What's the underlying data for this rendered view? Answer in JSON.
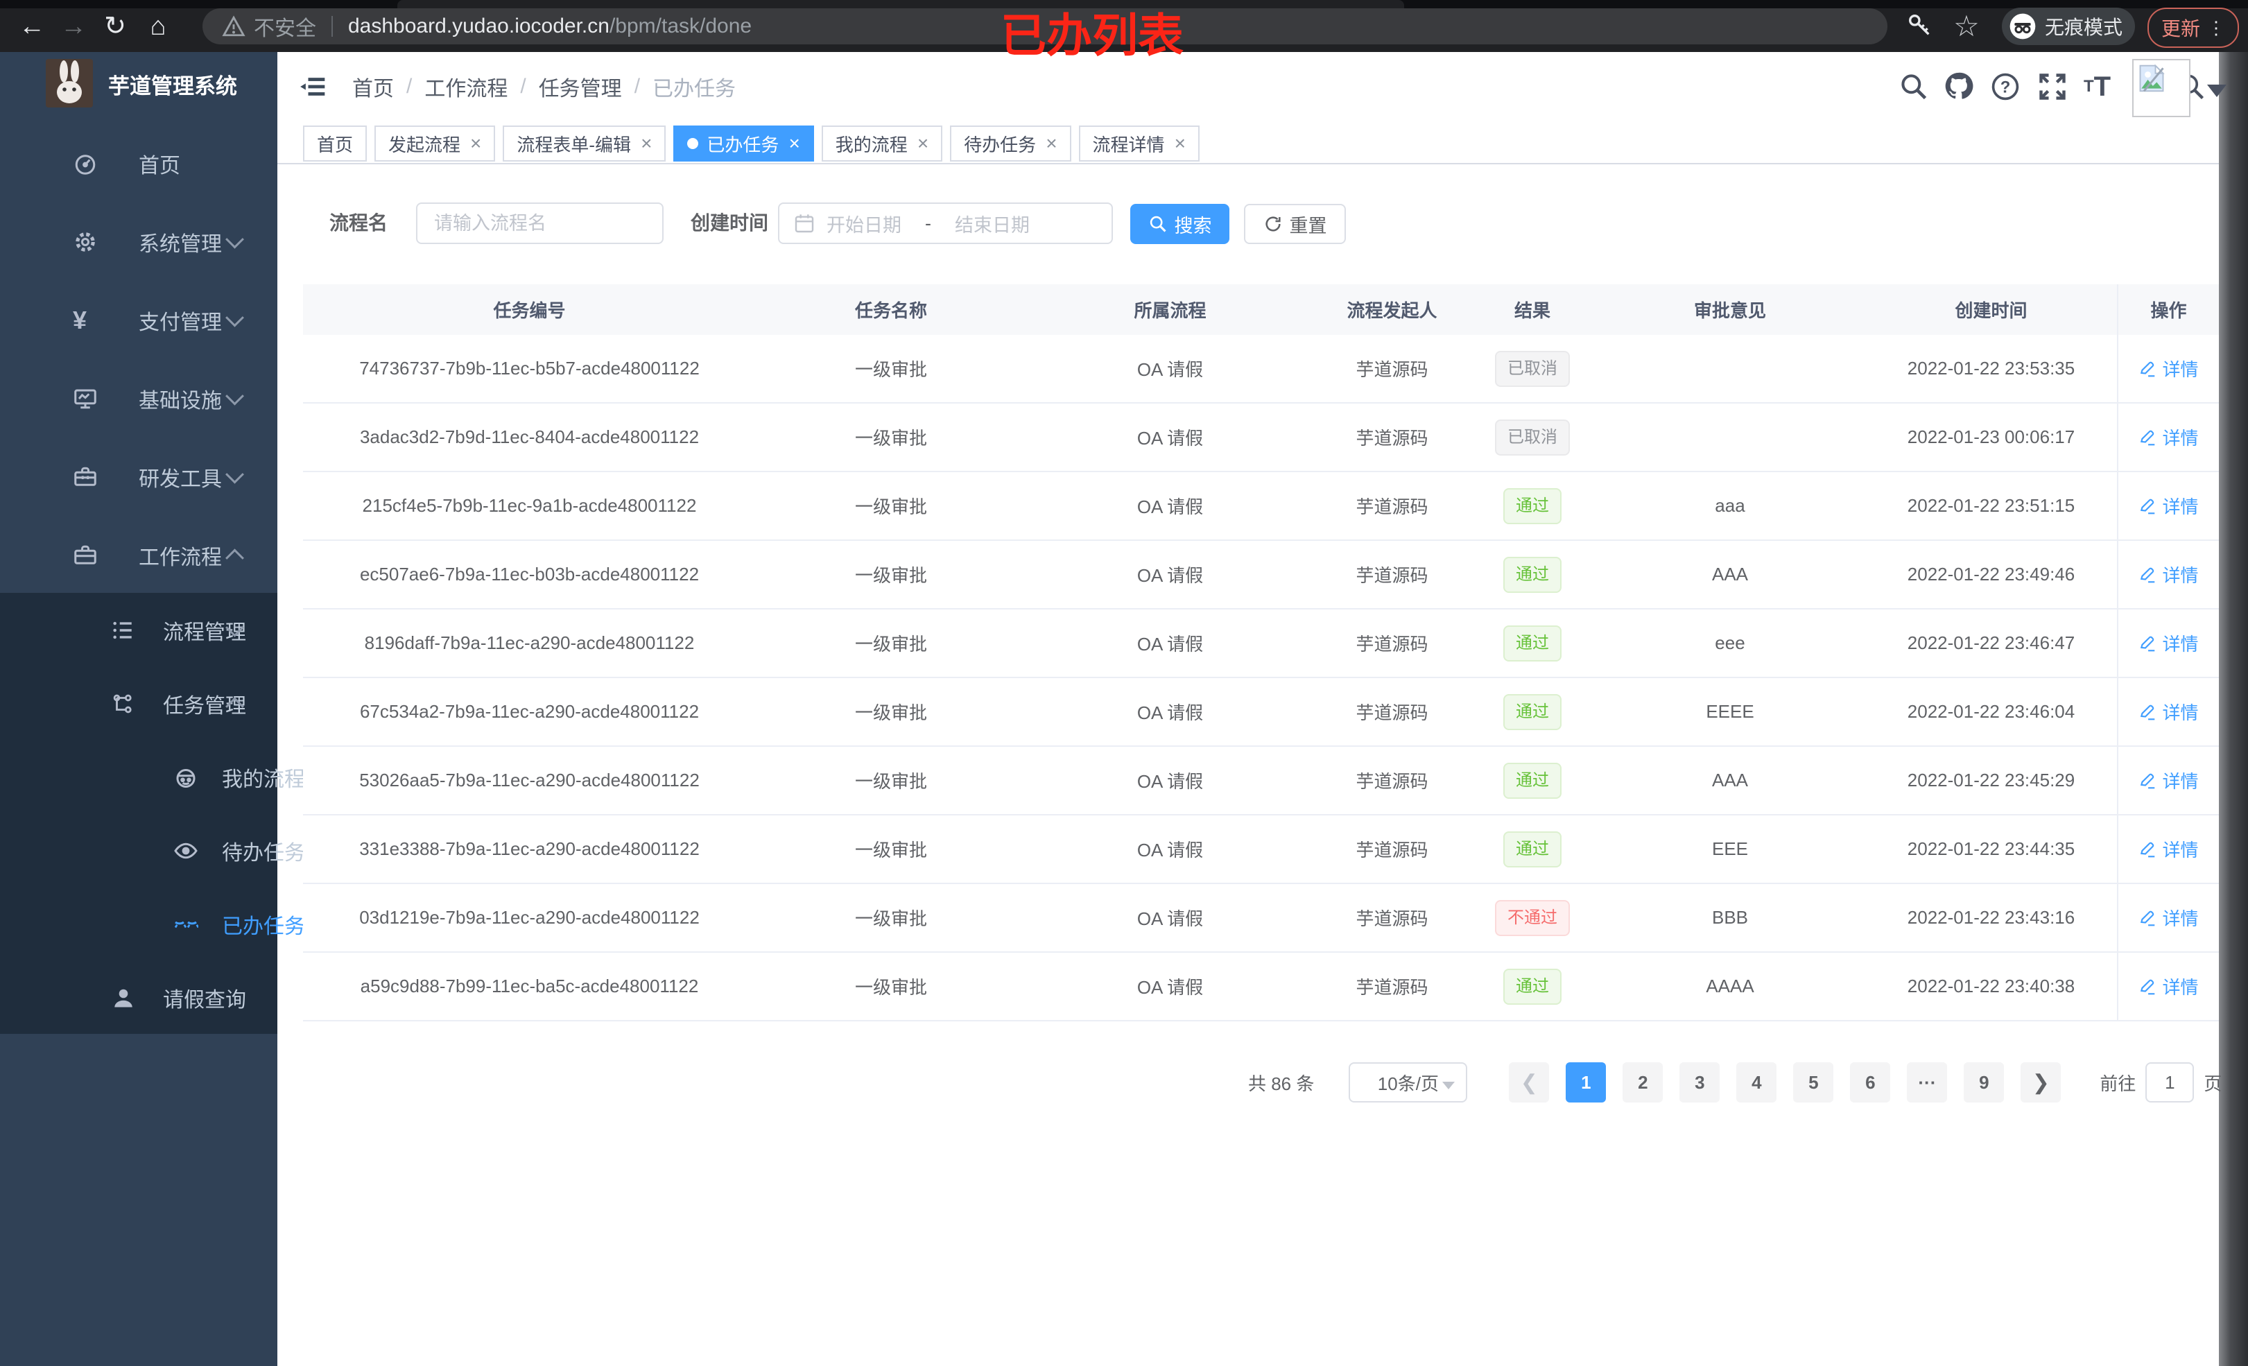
{
  "browser": {
    "annotation": "已办列表",
    "security_label": "不安全",
    "url_host": "dashboard.yudao.iocoder.cn",
    "url_path": "/bpm/task/done",
    "incognito_label": "无痕模式",
    "update_label": "更新"
  },
  "sidebar": {
    "title": "芋道管理系统",
    "items": [
      {
        "label": "首页",
        "icon": "dashboard-icon",
        "level": 1
      },
      {
        "label": "系统管理",
        "icon": "gear-icon",
        "level": 1,
        "chevron": "down"
      },
      {
        "label": "支付管理",
        "icon": "yen-icon",
        "level": 1,
        "chevron": "down"
      },
      {
        "label": "基础设施",
        "icon": "monitor-icon",
        "level": 1,
        "chevron": "down"
      },
      {
        "label": "研发工具",
        "icon": "toolbox-icon",
        "level": 1,
        "chevron": "down"
      },
      {
        "label": "工作流程",
        "icon": "briefcase-icon",
        "level": 1,
        "chevron": "up"
      }
    ],
    "submenu": [
      {
        "label": "流程管理",
        "icon": "tree-icon",
        "level": 2,
        "chevron": "down"
      },
      {
        "label": "任务管理",
        "icon": "flow-icon",
        "level": 2,
        "chevron": "up"
      },
      {
        "label": "我的流程",
        "icon": "robot-icon",
        "level": 3
      },
      {
        "label": "待办任务",
        "icon": "eye-icon",
        "level": 3
      },
      {
        "label": "已办任务",
        "icon": "eye-closed-icon",
        "level": 3,
        "active": true
      },
      {
        "label": "请假查询",
        "icon": "user-icon",
        "level": 2
      }
    ]
  },
  "breadcrumb": [
    "首页",
    "工作流程",
    "任务管理",
    "已办任务"
  ],
  "tabs": [
    {
      "label": "首页",
      "closable": false,
      "active": false
    },
    {
      "label": "发起流程",
      "closable": true,
      "active": false
    },
    {
      "label": "流程表单-编辑",
      "closable": true,
      "active": false
    },
    {
      "label": "已办任务",
      "closable": true,
      "active": true
    },
    {
      "label": "我的流程",
      "closable": true,
      "active": false
    },
    {
      "label": "待办任务",
      "closable": true,
      "active": false
    },
    {
      "label": "流程详情",
      "closable": true,
      "active": false
    }
  ],
  "filter": {
    "name_label": "流程名",
    "name_placeholder": "请输入流程名",
    "time_label": "创建时间",
    "start_placeholder": "开始日期",
    "range_separator": "-",
    "end_placeholder": "结束日期",
    "search_label": "搜索",
    "reset_label": "重置"
  },
  "table": {
    "columns": [
      "任务编号",
      "任务名称",
      "所属流程",
      "流程发起人",
      "结果",
      "审批意见",
      "创建时间",
      "操作"
    ],
    "action_label": "详情",
    "rows": [
      {
        "id": "74736737-7b9b-11ec-b5b7-acde48001122",
        "name": "一级审批",
        "process": "OA 请假",
        "starter": "芋道源码",
        "result": "已取消",
        "result_type": "info",
        "comment": "",
        "created": "2022-01-22 23:53:35"
      },
      {
        "id": "3adac3d2-7b9d-11ec-8404-acde48001122",
        "name": "一级审批",
        "process": "OA 请假",
        "starter": "芋道源码",
        "result": "已取消",
        "result_type": "info",
        "comment": "",
        "created": "2022-01-23 00:06:17"
      },
      {
        "id": "215cf4e5-7b9b-11ec-9a1b-acde48001122",
        "name": "一级审批",
        "process": "OA 请假",
        "starter": "芋道源码",
        "result": "通过",
        "result_type": "success",
        "comment": "aaa",
        "created": "2022-01-22 23:51:15"
      },
      {
        "id": "ec507ae6-7b9a-11ec-b03b-acde48001122",
        "name": "一级审批",
        "process": "OA 请假",
        "starter": "芋道源码",
        "result": "通过",
        "result_type": "success",
        "comment": "AAA",
        "created": "2022-01-22 23:49:46"
      },
      {
        "id": "8196daff-7b9a-11ec-a290-acde48001122",
        "name": "一级审批",
        "process": "OA 请假",
        "starter": "芋道源码",
        "result": "通过",
        "result_type": "success",
        "comment": "eee",
        "created": "2022-01-22 23:46:47"
      },
      {
        "id": "67c534a2-7b9a-11ec-a290-acde48001122",
        "name": "一级审批",
        "process": "OA 请假",
        "starter": "芋道源码",
        "result": "通过",
        "result_type": "success",
        "comment": "EEEE",
        "created": "2022-01-22 23:46:04"
      },
      {
        "id": "53026aa5-7b9a-11ec-a290-acde48001122",
        "name": "一级审批",
        "process": "OA 请假",
        "starter": "芋道源码",
        "result": "通过",
        "result_type": "success",
        "comment": "AAA",
        "created": "2022-01-22 23:45:29"
      },
      {
        "id": "331e3388-7b9a-11ec-a290-acde48001122",
        "name": "一级审批",
        "process": "OA 请假",
        "starter": "芋道源码",
        "result": "通过",
        "result_type": "success",
        "comment": "EEE",
        "created": "2022-01-22 23:44:35"
      },
      {
        "id": "03d1219e-7b9a-11ec-a290-acde48001122",
        "name": "一级审批",
        "process": "OA 请假",
        "starter": "芋道源码",
        "result": "不通过",
        "result_type": "danger",
        "comment": "BBB",
        "created": "2022-01-22 23:43:16"
      },
      {
        "id": "a59c9d88-7b99-11ec-ba5c-acde48001122",
        "name": "一级审批",
        "process": "OA 请假",
        "starter": "芋道源码",
        "result": "通过",
        "result_type": "success",
        "comment": "AAAA",
        "created": "2022-01-22 23:40:38"
      }
    ]
  },
  "pagination": {
    "total": "共 86 条",
    "page_size": "10条/页",
    "pages": [
      "1",
      "2",
      "3",
      "4",
      "5",
      "6",
      "···",
      "9"
    ],
    "active_page": "1",
    "goto_label": "前往",
    "goto_value": "1",
    "page_unit": "页"
  },
  "colors": {
    "accent": "#409eff",
    "success": "#67c23a",
    "danger": "#f56c6c",
    "info": "#909399",
    "sidebar_bg": "#304156",
    "submenu_bg": "#1f2d3d"
  }
}
